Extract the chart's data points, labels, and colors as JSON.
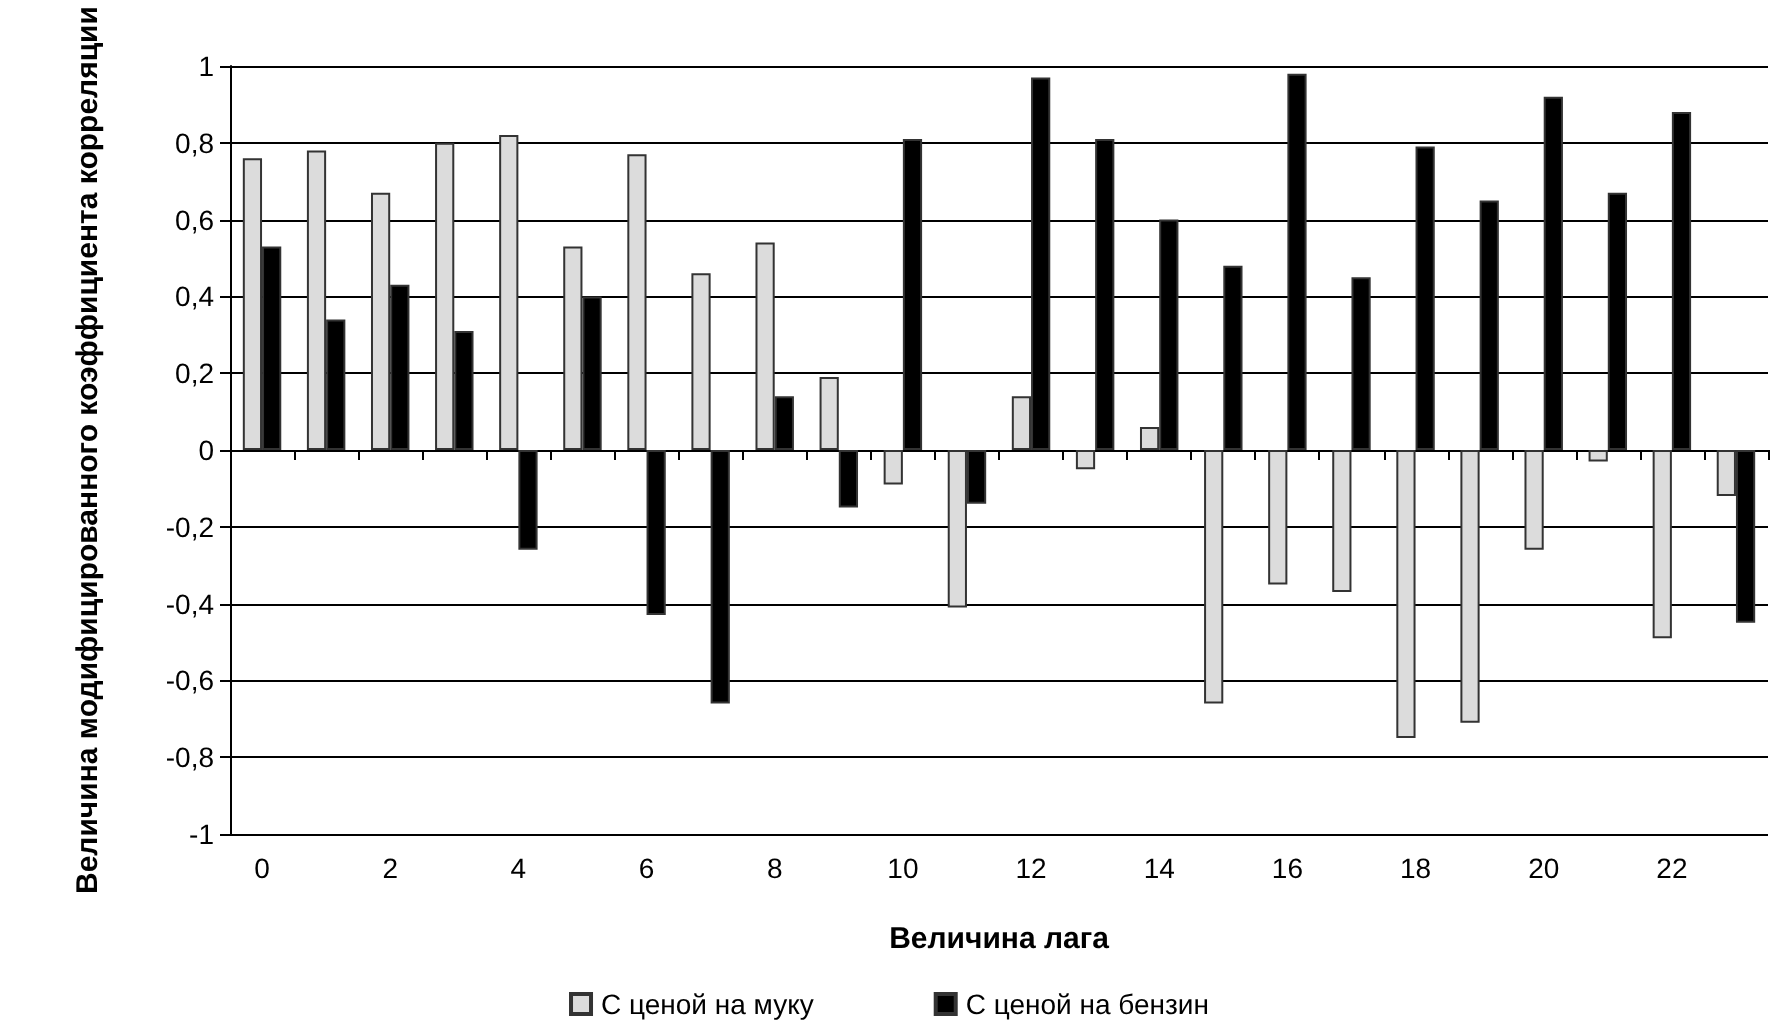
{
  "chart_data": {
    "type": "bar",
    "xlabel": "Величина лага",
    "ylabel": "Величина модифицированного коэффициента корреляции",
    "categories": [
      "0",
      null,
      "2",
      null,
      "4",
      null,
      "6",
      null,
      "8",
      null,
      "10",
      null,
      "12",
      null,
      "14",
      null,
      "16",
      null,
      "18",
      null,
      "20",
      null,
      "22",
      null
    ],
    "series": [
      {
        "name": "С ценой на муку",
        "color": "#dcdcdc",
        "values": [
          0.76,
          0.78,
          0.67,
          0.8,
          0.82,
          0.53,
          0.77,
          0.46,
          0.54,
          0.19,
          -0.09,
          -0.41,
          0.14,
          -0.05,
          0.06,
          -0.66,
          -0.35,
          -0.37,
          -0.75,
          -0.71,
          -0.26,
          -0.03,
          -0.49,
          -0.12
        ]
      },
      {
        "name": "С ценой на бензин",
        "color": "#000000",
        "values": [
          0.53,
          0.34,
          0.43,
          0.31,
          -0.26,
          0.4,
          -0.43,
          -0.66,
          0.14,
          -0.15,
          0.81,
          -0.14,
          0.97,
          0.81,
          0.6,
          0.48,
          0.98,
          0.45,
          0.79,
          0.65,
          0.92,
          0.67,
          0.88,
          -0.45
        ]
      }
    ],
    "ylim": [
      -1,
      1
    ],
    "yticks": [
      -1,
      {
        "value": -0.8,
        "label": "-0,8"
      },
      {
        "value": -0.6,
        "label": "-0,6"
      },
      {
        "value": -0.4,
        "label": "-0,4"
      },
      {
        "value": -0.2,
        "label": "-0,2"
      },
      0,
      {
        "value": 0.2,
        "label": "0,2"
      },
      {
        "value": 0.4,
        "label": "0,4"
      },
      {
        "value": 0.6,
        "label": "0,6"
      },
      {
        "value": 0.8,
        "label": "0,8"
      },
      1
    ],
    "grid": "y",
    "legend": "bottom"
  }
}
